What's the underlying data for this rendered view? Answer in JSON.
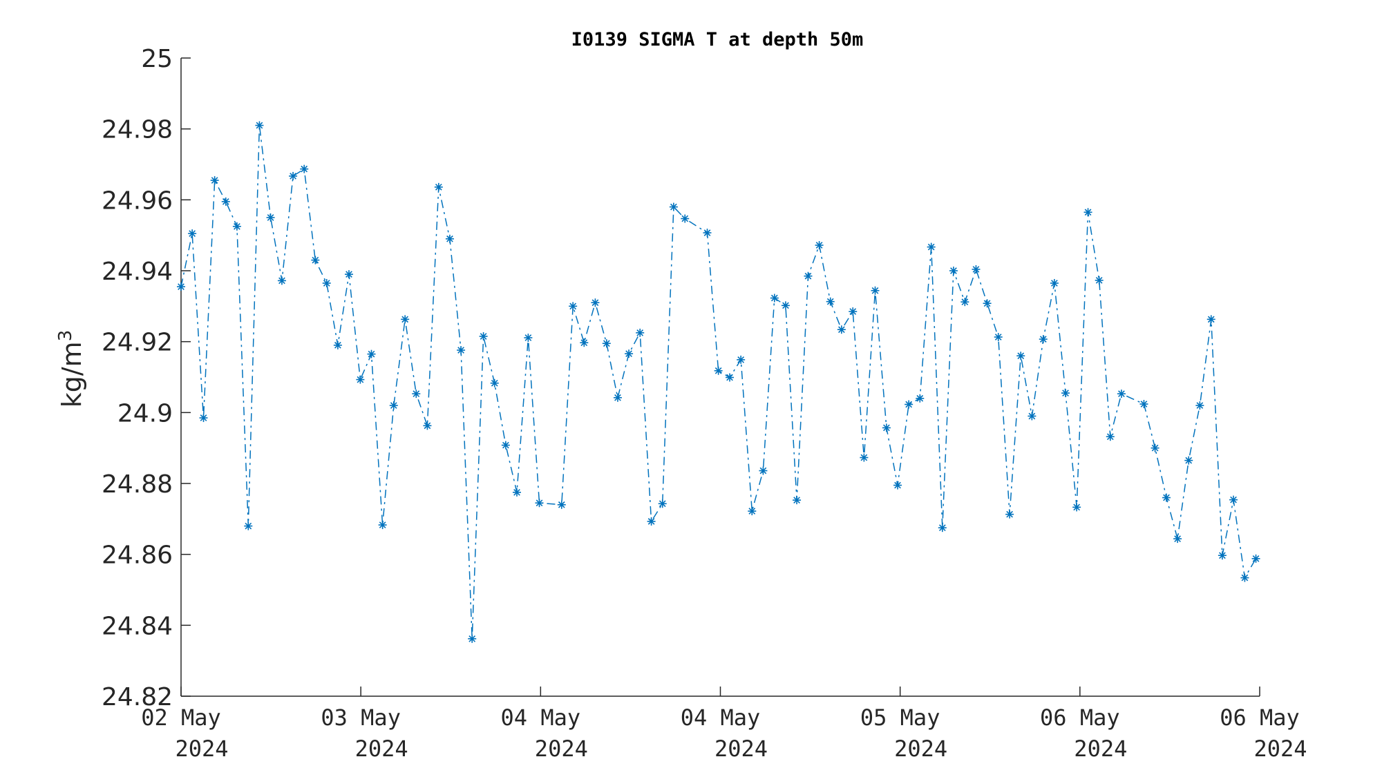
{
  "chart_data": {
    "type": "line",
    "title": "I0139 SIGMA T at depth 50m",
    "ylabel": "kg/m",
    "ylabel_sup": "3",
    "ylim": [
      24.82,
      25.0
    ],
    "yticks": [
      {
        "value": 24.82,
        "label": "24.82"
      },
      {
        "value": 24.84,
        "label": "24.84"
      },
      {
        "value": 24.86,
        "label": "24.86"
      },
      {
        "value": 24.88,
        "label": "24.88"
      },
      {
        "value": 24.9,
        "label": "24.9"
      },
      {
        "value": 24.92,
        "label": "24.92"
      },
      {
        "value": 24.94,
        "label": "24.94"
      },
      {
        "value": 24.96,
        "label": "24.96"
      },
      {
        "value": 24.98,
        "label": "24.98"
      },
      {
        "value": 25.0,
        "label": "25"
      }
    ],
    "xticks": [
      {
        "line1": "02 May",
        "line2": "2024"
      },
      {
        "line1": "03 May",
        "line2": "2024"
      },
      {
        "line1": "04 May",
        "line2": "2024"
      },
      {
        "line1": "04 May",
        "line2": "2024"
      },
      {
        "line1": "05 May",
        "line2": "2024"
      },
      {
        "line1": "06 May",
        "line2": "2024"
      },
      {
        "line1": "06 May",
        "line2": "2024"
      }
    ],
    "xlim": [
      0,
      6
    ],
    "series": [
      {
        "marker": "asterisk",
        "line_style": "dash-dot",
        "color": "#0072BD",
        "points": [
          [
            0.0,
            24.9355
          ],
          [
            0.062,
            24.9505
          ],
          [
            0.125,
            24.8985
          ],
          [
            0.187,
            24.9655
          ],
          [
            0.249,
            24.9595
          ],
          [
            0.311,
            24.9525
          ],
          [
            0.374,
            24.868
          ],
          [
            0.436,
            24.981
          ],
          [
            0.498,
            24.955
          ],
          [
            0.561,
            24.9372
          ],
          [
            0.623,
            24.9667
          ],
          [
            0.685,
            24.9687
          ],
          [
            0.747,
            24.943
          ],
          [
            0.81,
            24.9365
          ],
          [
            0.872,
            24.919
          ],
          [
            0.934,
            24.939
          ],
          [
            0.997,
            24.9093
          ],
          [
            1.059,
            24.9165
          ],
          [
            1.121,
            24.8683
          ],
          [
            1.183,
            24.902
          ],
          [
            1.246,
            24.9263
          ],
          [
            1.308,
            24.9053
          ],
          [
            1.37,
            24.8963
          ],
          [
            1.433,
            24.9636
          ],
          [
            1.495,
            24.949
          ],
          [
            1.557,
            24.9176
          ],
          [
            1.619,
            24.8362
          ],
          [
            1.682,
            24.9215
          ],
          [
            1.744,
            24.9083
          ],
          [
            1.806,
            24.8908
          ],
          [
            1.868,
            24.8775
          ],
          [
            1.931,
            24.9211
          ],
          [
            1.993,
            24.8745
          ],
          [
            2.117,
            24.874
          ],
          [
            2.18,
            24.93
          ],
          [
            2.242,
            24.9197
          ],
          [
            2.304,
            24.931
          ],
          [
            2.367,
            24.9195
          ],
          [
            2.429,
            24.9042
          ],
          [
            2.491,
            24.9166
          ],
          [
            2.553,
            24.9225
          ],
          [
            2.616,
            24.8693
          ],
          [
            2.678,
            24.8743
          ],
          [
            2.74,
            24.958
          ],
          [
            2.803,
            24.9547
          ],
          [
            2.927,
            24.9507
          ],
          [
            2.989,
            24.9118
          ],
          [
            3.052,
            24.9099
          ],
          [
            3.114,
            24.9149
          ],
          [
            3.176,
            24.8722
          ],
          [
            3.238,
            24.8836
          ],
          [
            3.301,
            24.9323
          ],
          [
            3.363,
            24.9302
          ],
          [
            3.425,
            24.8753
          ],
          [
            3.488,
            24.9385
          ],
          [
            3.55,
            24.9472
          ],
          [
            3.612,
            24.9313
          ],
          [
            3.674,
            24.9234
          ],
          [
            3.737,
            24.9285
          ],
          [
            3.799,
            24.8873
          ],
          [
            3.861,
            24.9344
          ],
          [
            3.924,
            24.8957
          ],
          [
            3.986,
            24.8795
          ],
          [
            4.048,
            24.9023
          ],
          [
            4.11,
            24.904
          ],
          [
            4.173,
            24.9467
          ],
          [
            4.235,
            24.8675
          ],
          [
            4.297,
            24.94
          ],
          [
            4.36,
            24.9312
          ],
          [
            4.422,
            24.9404
          ],
          [
            4.484,
            24.9308
          ],
          [
            4.546,
            24.9213
          ],
          [
            4.609,
            24.8713
          ],
          [
            4.671,
            24.916
          ],
          [
            4.733,
            24.899
          ],
          [
            4.796,
            24.9207
          ],
          [
            4.858,
            24.9365
          ],
          [
            4.92,
            24.9055
          ],
          [
            4.982,
            24.8733
          ],
          [
            5.045,
            24.9565
          ],
          [
            5.107,
            24.9373
          ],
          [
            5.169,
            24.8932
          ],
          [
            5.231,
            24.9053
          ],
          [
            5.356,
            24.9024
          ],
          [
            5.418,
            24.89
          ],
          [
            5.481,
            24.876
          ],
          [
            5.543,
            24.8644
          ],
          [
            5.605,
            24.8865
          ],
          [
            5.667,
            24.902
          ],
          [
            5.73,
            24.9263
          ],
          [
            5.792,
            24.8597
          ],
          [
            5.854,
            24.8754
          ],
          [
            5.917,
            24.8534
          ],
          [
            5.979,
            24.8588
          ]
        ]
      }
    ]
  }
}
